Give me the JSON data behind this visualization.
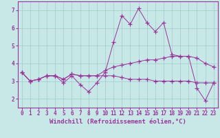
{
  "xlabel": "Windchill (Refroidissement éolien,°C)",
  "bg_color": "#c8e8e8",
  "line_color": "#993399",
  "marker": "+",
  "xlim": [
    -0.5,
    23.5
  ],
  "ylim": [
    1.5,
    7.5
  ],
  "yticks": [
    2,
    3,
    4,
    5,
    6,
    7
  ],
  "xticks": [
    0,
    1,
    2,
    3,
    4,
    5,
    6,
    7,
    8,
    9,
    10,
    11,
    12,
    13,
    14,
    15,
    16,
    17,
    18,
    19,
    20,
    21,
    22,
    23
  ],
  "series": [
    {
      "x": [
        0,
        1,
        2,
        3,
        4,
        5,
        6,
        7,
        8,
        9,
        10,
        11,
        12,
        13,
        14,
        15,
        16,
        17,
        18,
        19,
        20,
        21,
        22,
        23
      ],
      "y": [
        3.5,
        3.0,
        3.1,
        3.3,
        3.3,
        2.9,
        3.3,
        2.8,
        2.4,
        2.9,
        3.5,
        5.2,
        6.7,
        6.2,
        7.1,
        6.3,
        5.8,
        6.3,
        4.5,
        4.4,
        4.4,
        2.6,
        1.9,
        2.9
      ]
    },
    {
      "x": [
        0,
        1,
        2,
        3,
        4,
        5,
        6,
        7,
        8,
        9,
        10,
        11,
        12,
        13,
        14,
        15,
        16,
        17,
        18,
        19,
        20,
        21,
        22,
        23
      ],
      "y": [
        3.5,
        3.0,
        3.1,
        3.3,
        3.3,
        3.1,
        3.4,
        3.3,
        3.3,
        3.3,
        3.6,
        3.8,
        3.9,
        4.0,
        4.1,
        4.2,
        4.2,
        4.3,
        4.4,
        4.4,
        4.4,
        4.3,
        4.0,
        3.8
      ]
    },
    {
      "x": [
        0,
        1,
        2,
        3,
        4,
        5,
        6,
        7,
        8,
        9,
        10,
        11,
        12,
        13,
        14,
        15,
        16,
        17,
        18,
        19,
        20,
        21,
        22,
        23
      ],
      "y": [
        3.5,
        3.0,
        3.1,
        3.3,
        3.3,
        3.1,
        3.4,
        3.3,
        3.3,
        3.3,
        3.3,
        3.3,
        3.2,
        3.1,
        3.1,
        3.1,
        3.0,
        3.0,
        3.0,
        3.0,
        3.0,
        2.9,
        2.9,
        2.9
      ]
    }
  ],
  "grid_color": "#a0cccc",
  "tick_label_fontsize": 5.5,
  "xlabel_fontsize": 6.5
}
